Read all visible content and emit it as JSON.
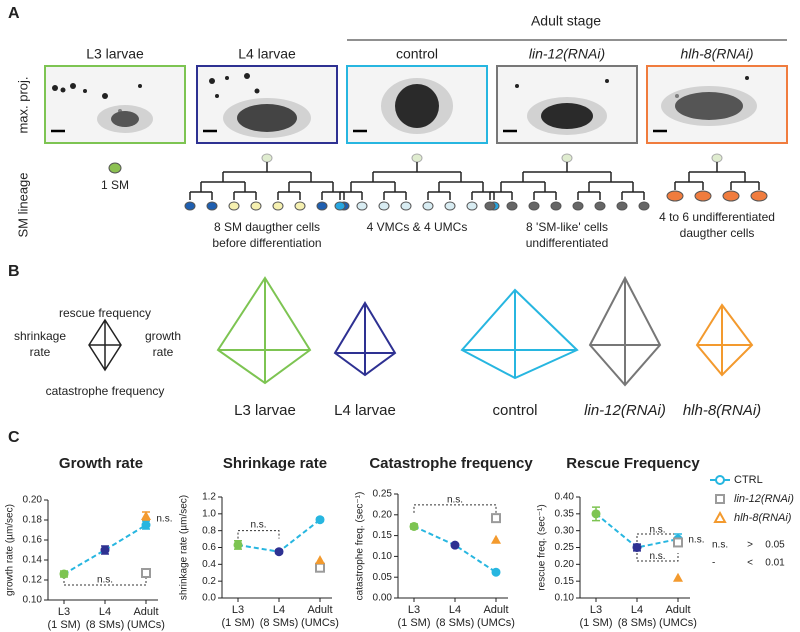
{
  "panel_labels": [
    "A",
    "B",
    "C"
  ],
  "panel_a": {
    "group_label": "Adult stage",
    "row_labels": [
      "max. proj.",
      "SM lineage"
    ],
    "columns": [
      {
        "title": "L3 larvae",
        "color": "#7dc452",
        "caption": [
          "1 SM"
        ]
      },
      {
        "title": "L4 larvae",
        "color": "#2e3192",
        "caption": [
          "8 SM daugther cells",
          "before differentiation"
        ]
      },
      {
        "title": "control",
        "color": "#27b6e0",
        "caption": [
          "4 VMCs & 4 UMCs"
        ]
      },
      {
        "title": "lin-12(RNAi)",
        "color": "#777777",
        "caption": [
          "8 'SM-like' cells",
          "undifferentiated"
        ]
      },
      {
        "title": "hlh-8(RNAi)",
        "color": "#f07c3e",
        "caption": [
          "4 to 6 undifferentiated",
          "daugther cells"
        ]
      }
    ]
  },
  "panel_b": {
    "key": {
      "top": [
        "rescue frequency"
      ],
      "left": [
        "shrinkage",
        "rate"
      ],
      "right": [
        "growth",
        "rate"
      ],
      "bottom": [
        "catastrophe frequency"
      ]
    },
    "labels": [
      "L3 larvae",
      "L4 larvae",
      "control",
      "lin-12(RNAi)",
      "hlh-8(RNAi)"
    ],
    "colors": [
      "#7dc452",
      "#2e3192",
      "#27b6e0",
      "#777777",
      "#f39a2e"
    ]
  },
  "chart_data": [
    {
      "type": "line",
      "title": "Growth rate",
      "ylabel": "growth rate (µm/sec)",
      "categories": [
        "L3",
        "L4",
        "Adult"
      ],
      "category_notes": [
        "(1 SM)",
        "(8 SMs)",
        "(UMCs)"
      ],
      "category_colors": [
        "#7dc452",
        "#2e3192",
        "#27b6e0"
      ],
      "ylim": [
        0.1,
        0.2
      ],
      "yticks": [
        {
          "value": 0.1,
          "label": "0.10"
        },
        0.12,
        0.14,
        0.16,
        0.18,
        {
          "value": 0.2,
          "label": "0.20"
        }
      ],
      "series": [
        {
          "name": "CTRL",
          "color": "#27b6e0",
          "marker": "circle",
          "values": [
            0.126,
            0.15,
            0.175
          ],
          "errors": [
            0.003,
            0.004,
            0.004
          ]
        },
        {
          "name": "lin-12(RNAi)",
          "color": "#9b9b9b",
          "marker": "square",
          "values": [
            null,
            null,
            0.127
          ]
        },
        {
          "name": "hlh-8(RNAi)",
          "color": "#f39a2e",
          "marker": "triangle",
          "values": [
            null,
            null,
            0.184
          ],
          "errors": [
            null,
            null,
            0.004
          ]
        }
      ],
      "annotations": [
        "n.s.",
        "n.s."
      ]
    },
    {
      "type": "line",
      "title": "Shrinkage rate",
      "ylabel": "shrinkage rate (µm/sec)",
      "categories": [
        "L3",
        "L4",
        "Adult"
      ],
      "category_notes": [
        "(1 SM)",
        "(8 SMs)",
        "(UMCs)"
      ],
      "category_colors": [
        "#7dc452",
        "#2e3192",
        "#27b6e0"
      ],
      "ylim": [
        0,
        1.2
      ],
      "yticks": [
        {
          "value": 0,
          "label": "0.0"
        },
        0.2,
        0.4,
        0.6,
        0.8,
        {
          "value": 1,
          "label": "1.0"
        },
        1.2
      ],
      "series": [
        {
          "name": "CTRL",
          "color": "#27b6e0",
          "marker": "circle",
          "values": [
            0.63,
            0.55,
            0.93
          ],
          "errors": [
            0.05,
            0.02,
            0.02
          ]
        },
        {
          "name": "lin-12(RNAi)",
          "color": "#9b9b9b",
          "marker": "square",
          "values": [
            null,
            null,
            0.36
          ]
        },
        {
          "name": "hlh-8(RNAi)",
          "color": "#f39a2e",
          "marker": "triangle",
          "values": [
            null,
            null,
            0.45
          ]
        }
      ],
      "annotations": [
        "n.s."
      ]
    },
    {
      "type": "line",
      "title": "Catastrophe frequency",
      "ylabel": "catastrophe freq. (sec⁻¹)",
      "categories": [
        "L3",
        "L4",
        "Adult"
      ],
      "category_notes": [
        "(1 SM)",
        "(8 SMs)",
        "(UMCs)"
      ],
      "category_colors": [
        "#7dc452",
        "#2e3192",
        "#27b6e0"
      ],
      "ylim": [
        0,
        0.25
      ],
      "yticks": [
        {
          "value": 0,
          "label": "0.00"
        },
        0.05,
        {
          "value": 0.1,
          "label": "0.10"
        },
        0.15,
        {
          "value": 0.2,
          "label": "0.20"
        },
        0.25
      ],
      "series": [
        {
          "name": "CTRL",
          "color": "#27b6e0",
          "marker": "circle",
          "values": [
            0.172,
            0.127,
            0.062
          ],
          "errors": [
            0.006,
            0.003,
            0.003
          ]
        },
        {
          "name": "lin-12(RNAi)",
          "color": "#9b9b9b",
          "marker": "square",
          "values": [
            null,
            null,
            0.192
          ]
        },
        {
          "name": "hlh-8(RNAi)",
          "color": "#f39a2e",
          "marker": "triangle",
          "values": [
            null,
            null,
            0.14
          ]
        }
      ],
      "annotations": [
        "n.s."
      ]
    },
    {
      "type": "line",
      "title": "Rescue Frequency",
      "ylabel": "rescue freq. (sec⁻¹)",
      "categories": [
        "L3",
        "L4",
        "Adult"
      ],
      "category_notes": [
        "(1 SM)",
        "(8 SMs)",
        "(UMCs)"
      ],
      "category_colors": [
        "#7dc452",
        "#2e3192",
        "#27b6e0"
      ],
      "ylim": [
        0.1,
        0.4
      ],
      "yticks": [
        {
          "value": 0.1,
          "label": "0.10"
        },
        0.15,
        {
          "value": 0.2,
          "label": "0.20"
        },
        0.25,
        {
          "value": 0.3,
          "label": "0.30"
        },
        0.35,
        {
          "value": 0.4,
          "label": "0.40"
        }
      ],
      "series": [
        {
          "name": "CTRL",
          "color": "#27b6e0",
          "marker": "circle",
          "values": [
            0.35,
            0.25,
            0.275
          ],
          "errors": [
            0.02,
            0.01,
            0.015
          ]
        },
        {
          "name": "lin-12(RNAi)",
          "color": "#9b9b9b",
          "marker": "square",
          "values": [
            null,
            null,
            0.265
          ]
        },
        {
          "name": "hlh-8(RNAi)",
          "color": "#f39a2e",
          "marker": "triangle",
          "values": [
            null,
            null,
            0.16
          ]
        }
      ],
      "annotations": [
        "n.s.",
        "n.s.",
        "n.s."
      ]
    }
  ],
  "significance_key": [
    [
      "n.s.",
      ">",
      "0.05"
    ],
    [
      "-",
      "<",
      "0.01"
    ]
  ]
}
